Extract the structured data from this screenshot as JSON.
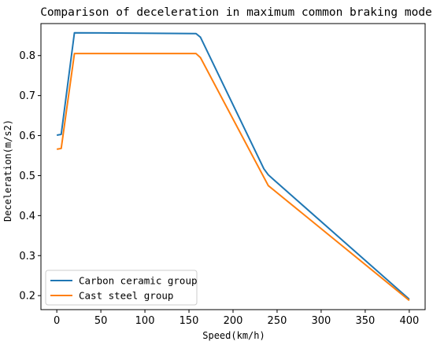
{
  "chart_data": {
    "type": "line",
    "title": "Comparison of deceleration in maximum common braking mode",
    "xlabel": "Speed(km/h)",
    "ylabel": "Deceleration(m/s2)",
    "xlim": [
      -18,
      418
    ],
    "ylim": [
      0.165,
      0.88
    ],
    "xticks": [
      0,
      50,
      100,
      150,
      200,
      250,
      300,
      350,
      400
    ],
    "yticks": [
      0.2,
      0.3,
      0.4,
      0.5,
      0.6,
      0.7,
      0.8
    ],
    "grid": false,
    "legend_position": "bottom-left",
    "series": [
      {
        "name": "Carbon ceramic group",
        "color": "#1f77b4",
        "x": [
          0,
          5,
          20,
          158,
          163,
          235,
          240,
          245,
          400
        ],
        "y": [
          0.601,
          0.603,
          0.857,
          0.855,
          0.846,
          0.517,
          0.502,
          0.492,
          0.191
        ]
      },
      {
        "name": "Cast steel group",
        "color": "#ff7f0e",
        "x": [
          0,
          5,
          20,
          158,
          163,
          240,
          245,
          400
        ],
        "y": [
          0.566,
          0.568,
          0.805,
          0.805,
          0.795,
          0.475,
          0.466,
          0.188
        ]
      }
    ]
  }
}
